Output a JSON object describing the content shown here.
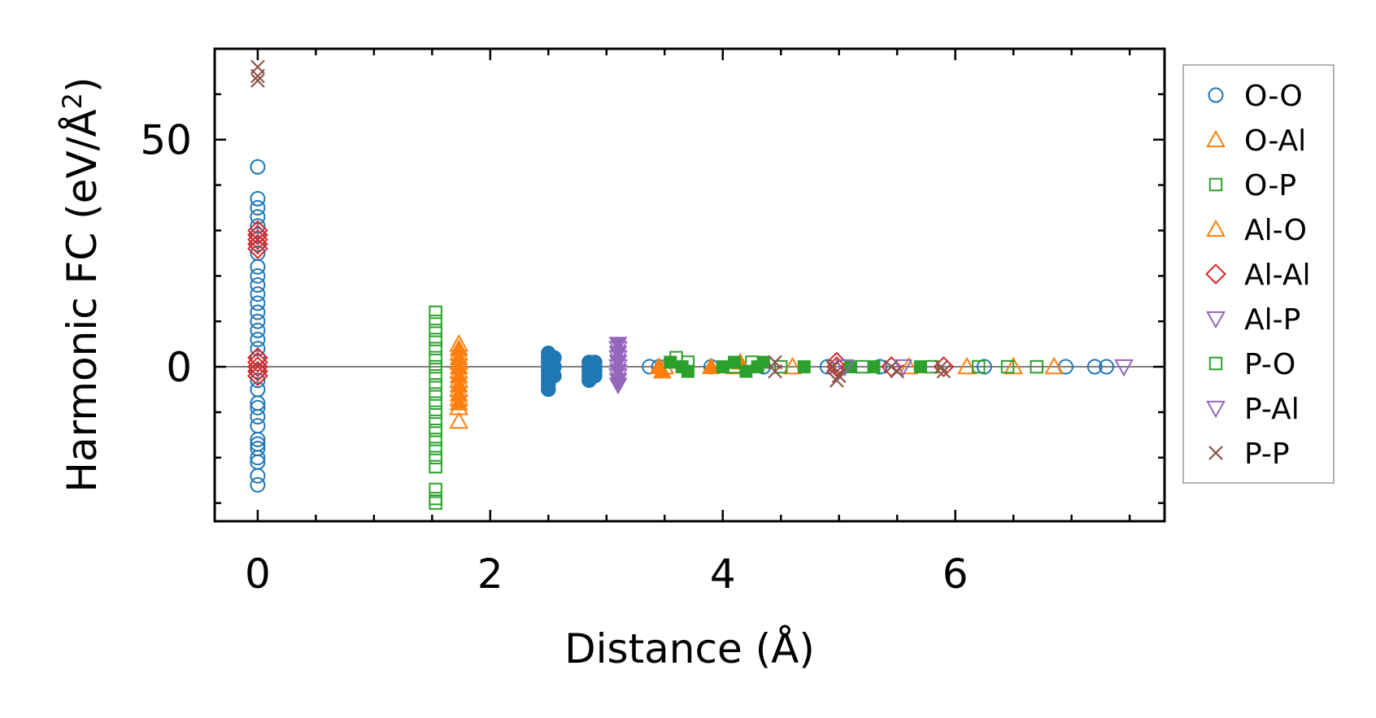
{
  "chart_data": {
    "type": "scatter",
    "xlabel": "Distance (Å)",
    "ylabel": "Harmonic FC (eV/Å",
    "ylabel_sup": "2",
    "ylabel_close": ")",
    "xlim": [
      -0.37,
      7.8
    ],
    "ylim": [
      -34,
      70
    ],
    "xticks": [
      0,
      2,
      4,
      6
    ],
    "xtick_labels": [
      "0",
      "2",
      "4",
      "6"
    ],
    "yticks": [
      0,
      50
    ],
    "ytick_labels": [
      "0",
      "50"
    ],
    "x_minor_step": 0.5,
    "y_minor_step": 10,
    "reference_line_y": 0,
    "grid": false,
    "legend_position": "outside-right",
    "series": [
      {
        "name": "O-O",
        "marker": "circle",
        "filled": false,
        "color": "#1f77b4",
        "points": [
          [
            0,
            44
          ],
          [
            0,
            37
          ],
          [
            0,
            35
          ],
          [
            0,
            33
          ],
          [
            0,
            31
          ],
          [
            0,
            29
          ],
          [
            0,
            27
          ],
          [
            0,
            25
          ],
          [
            0,
            22
          ],
          [
            0,
            20
          ],
          [
            0,
            18
          ],
          [
            0,
            16
          ],
          [
            0,
            14
          ],
          [
            0,
            12
          ],
          [
            0,
            10
          ],
          [
            0,
            8
          ],
          [
            0,
            6
          ],
          [
            0,
            4
          ],
          [
            0,
            2
          ],
          [
            0,
            -1
          ],
          [
            0,
            -3
          ],
          [
            0,
            -5
          ],
          [
            0,
            -8
          ],
          [
            0,
            -9
          ],
          [
            0,
            -11
          ],
          [
            0,
            -13
          ],
          [
            0,
            -16
          ],
          [
            0,
            -17
          ],
          [
            0,
            -18
          ],
          [
            0,
            -20
          ],
          [
            0,
            -21
          ],
          [
            0,
            -24
          ],
          [
            0,
            -26
          ],
          [
            3.37,
            0
          ],
          [
            3.45,
            0
          ],
          [
            3.9,
            0
          ],
          [
            4.35,
            0
          ],
          [
            4.9,
            0
          ],
          [
            5.35,
            0
          ],
          [
            6.25,
            0
          ],
          [
            6.95,
            0
          ],
          [
            7.2,
            0
          ],
          [
            7.3,
            0
          ]
        ]
      },
      {
        "name": "O-O",
        "marker": "circle",
        "filled": true,
        "color": "#1f77b4",
        "legend": false,
        "points": [
          [
            2.5,
            3
          ],
          [
            2.5,
            2
          ],
          [
            2.5,
            1
          ],
          [
            2.5,
            0
          ],
          [
            2.5,
            -1
          ],
          [
            2.5,
            -2
          ],
          [
            2.5,
            -3
          ],
          [
            2.5,
            -4
          ],
          [
            2.5,
            -5
          ],
          [
            2.55,
            2
          ],
          [
            2.55,
            0
          ],
          [
            2.55,
            -2
          ],
          [
            2.85,
            1
          ],
          [
            2.85,
            0
          ],
          [
            2.85,
            -1
          ],
          [
            2.85,
            -2
          ],
          [
            2.85,
            -3
          ],
          [
            2.9,
            1
          ],
          [
            2.9,
            0
          ],
          [
            2.9,
            -1
          ],
          [
            2.9,
            -2
          ]
        ]
      },
      {
        "name": "O-Al",
        "marker": "triangle-up",
        "filled": false,
        "color": "#ff7f0e",
        "points": [
          [
            1.73,
            5
          ],
          [
            1.73,
            3
          ],
          [
            1.73,
            1
          ],
          [
            1.73,
            -1
          ],
          [
            1.73,
            -3
          ],
          [
            1.73,
            -5
          ],
          [
            1.73,
            -7
          ],
          [
            1.73,
            -9
          ],
          [
            1.73,
            -12
          ],
          [
            3.5,
            0
          ],
          [
            4.1,
            0
          ],
          [
            4.6,
            0
          ],
          [
            5.6,
            0
          ],
          [
            6.1,
            0
          ],
          [
            6.5,
            0
          ],
          [
            6.85,
            0
          ]
        ]
      },
      {
        "name": "O-P",
        "marker": "square",
        "filled": false,
        "color": "#2ca02c",
        "points": [
          [
            1.53,
            12
          ],
          [
            1.53,
            10
          ],
          [
            1.53,
            8
          ],
          [
            1.53,
            6
          ],
          [
            1.53,
            4
          ],
          [
            1.53,
            2
          ],
          [
            1.53,
            0
          ],
          [
            1.53,
            -2
          ],
          [
            1.53,
            -4
          ],
          [
            1.53,
            -6
          ],
          [
            1.53,
            -8
          ],
          [
            1.53,
            -10
          ],
          [
            1.53,
            -12
          ],
          [
            1.53,
            -14
          ],
          [
            1.53,
            -16
          ],
          [
            1.53,
            -18
          ],
          [
            1.53,
            -20
          ],
          [
            1.53,
            -22
          ],
          [
            1.53,
            -27
          ],
          [
            1.53,
            -29
          ],
          [
            1.53,
            -30
          ],
          [
            3.6,
            2
          ],
          [
            3.7,
            1
          ],
          [
            4.1,
            0
          ],
          [
            4.25,
            1
          ],
          [
            4.5,
            0
          ],
          [
            5.2,
            0
          ],
          [
            5.8,
            0
          ],
          [
            6.2,
            0
          ],
          [
            6.45,
            0
          ],
          [
            6.7,
            0
          ]
        ]
      },
      {
        "name": "Al-O",
        "marker": "triangle-up",
        "filled": true,
        "color": "#ff7f0e",
        "points": [
          [
            1.73,
            4
          ],
          [
            1.73,
            2
          ],
          [
            1.73,
            0
          ],
          [
            1.73,
            -2
          ],
          [
            1.73,
            -4
          ],
          [
            1.73,
            -6
          ],
          [
            1.73,
            -8
          ],
          [
            3.45,
            0
          ],
          [
            3.48,
            -1
          ],
          [
            3.9,
            0
          ],
          [
            4.15,
            1
          ]
        ]
      },
      {
        "name": "Al-Al",
        "marker": "diamond",
        "filled": false,
        "color": "#d62728",
        "points": [
          [
            0,
            30
          ],
          [
            0,
            29
          ],
          [
            0,
            28
          ],
          [
            0,
            27
          ],
          [
            0,
            26
          ],
          [
            0,
            2
          ],
          [
            0,
            1
          ],
          [
            0,
            0
          ],
          [
            0,
            -1
          ],
          [
            0,
            -2
          ],
          [
            4.98,
            1
          ],
          [
            4.98,
            0
          ],
          [
            4.98,
            -1
          ],
          [
            5.45,
            0
          ],
          [
            5.9,
            0
          ]
        ]
      },
      {
        "name": "Al-P",
        "marker": "triangle-down",
        "filled": true,
        "color": "#9467bd",
        "points": [
          [
            3.1,
            5
          ],
          [
            3.1,
            3
          ],
          [
            3.1,
            1
          ],
          [
            3.1,
            -1
          ],
          [
            3.1,
            -3
          ],
          [
            3.1,
            -4
          ]
        ]
      },
      {
        "name": "P-O",
        "marker": "square",
        "filled": true,
        "color": "#2ca02c",
        "points": [
          [
            3.55,
            1
          ],
          [
            3.65,
            0
          ],
          [
            3.7,
            -1
          ],
          [
            4.0,
            0
          ],
          [
            4.1,
            1
          ],
          [
            4.2,
            -1
          ],
          [
            4.3,
            0
          ],
          [
            4.35,
            1
          ],
          [
            4.7,
            0
          ],
          [
            5.1,
            0
          ],
          [
            5.3,
            0
          ],
          [
            5.7,
            0
          ]
        ]
      },
      {
        "name": "P-Al",
        "marker": "triangle-down",
        "filled": false,
        "color": "#9467bd",
        "points": [
          [
            3.1,
            4
          ],
          [
            3.1,
            2
          ],
          [
            3.1,
            0
          ],
          [
            3.1,
            -2
          ],
          [
            5.05,
            0
          ],
          [
            5.55,
            0
          ],
          [
            7.45,
            0
          ]
        ]
      },
      {
        "name": "P-P",
        "marker": "x",
        "filled": false,
        "color": "#8c564b",
        "points": [
          [
            0,
            66
          ],
          [
            0,
            64
          ],
          [
            0,
            63
          ],
          [
            4.45,
            1
          ],
          [
            4.45,
            -1
          ],
          [
            4.95,
            0
          ],
          [
            4.98,
            -3
          ],
          [
            5.0,
            -2
          ],
          [
            5.45,
            0
          ],
          [
            5.5,
            -1
          ],
          [
            5.88,
            0
          ],
          [
            5.9,
            -1
          ]
        ]
      }
    ]
  }
}
